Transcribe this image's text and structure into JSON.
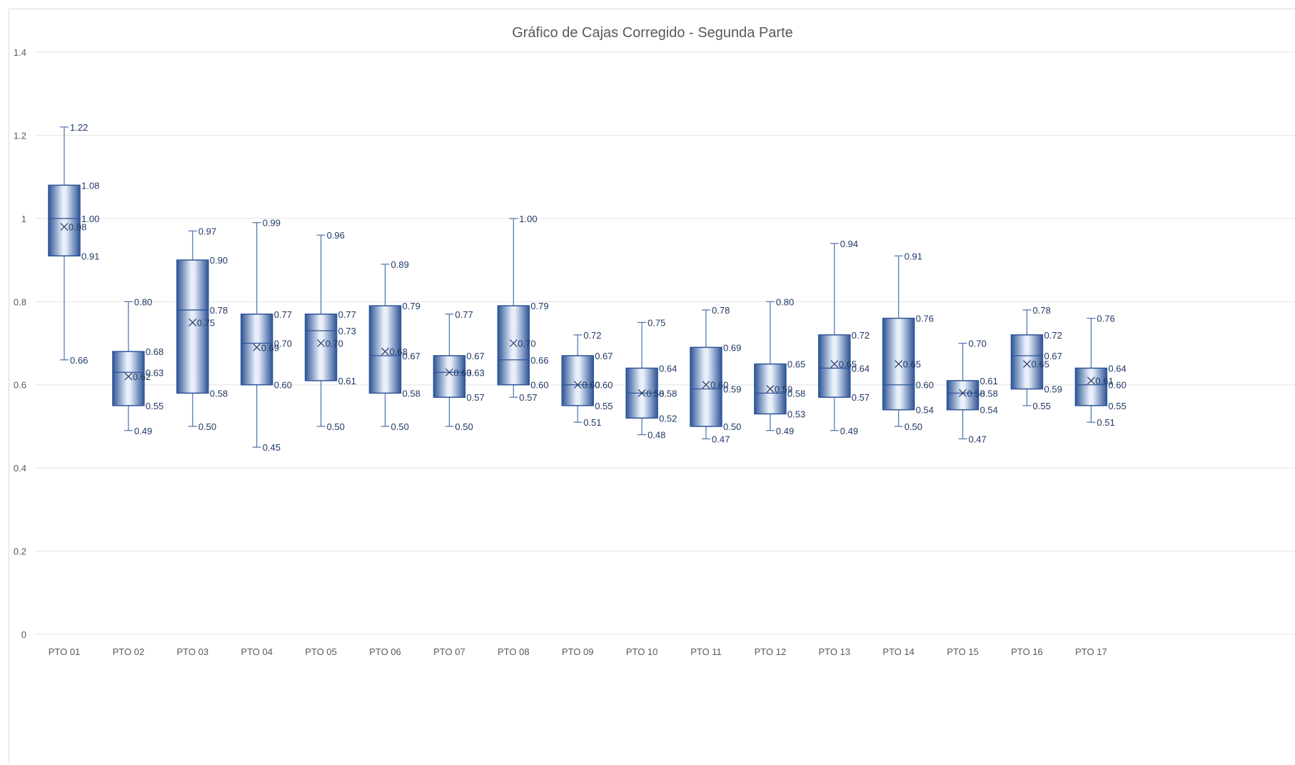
{
  "chart_data": {
    "type": "box",
    "title": "Gráfico de Cajas Corregido - Segunda Parte",
    "xlabel": "",
    "ylabel": "",
    "ylim": [
      0,
      1.4
    ],
    "y_ticks": [
      "0",
      "0.2",
      "0.4",
      "0.6",
      "0.8",
      "1",
      "1.2",
      "1.4"
    ],
    "grid": true,
    "legend": "none",
    "colors": {
      "box_dark": "#2e5597",
      "box_light": "#e8effa",
      "whisker": "#4a72b0",
      "label": "#1f3864",
      "grid": "#e4e4e4",
      "tick": "#595959"
    },
    "boxes": [
      {
        "category": "PTO 01",
        "min": 0.66,
        "q1": 0.91,
        "median": 1.0,
        "q3": 1.08,
        "max": 1.22,
        "mean": 0.98,
        "labels": {
          "max": "1.22",
          "q3": "1.08",
          "median": "1.00",
          "q1": "0.91",
          "min": "0.66",
          "mean": "0.98"
        }
      },
      {
        "category": "PTO 02",
        "min": 0.49,
        "q1": 0.55,
        "median": 0.63,
        "q3": 0.68,
        "max": 0.8,
        "mean": 0.62,
        "labels": {
          "max": "0.80",
          "q3": "0.68",
          "median": "0.63",
          "q1": "0.55",
          "min": "0.49",
          "mean": "0.62"
        }
      },
      {
        "category": "PTO 03",
        "min": 0.5,
        "q1": 0.58,
        "median": 0.78,
        "q3": 0.9,
        "max": 0.97,
        "mean": 0.75,
        "labels": {
          "max": "0.97",
          "q3": "0.90",
          "median": "0.78",
          "q1": "0.58",
          "min": "0.50",
          "mean": "0.75"
        }
      },
      {
        "category": "PTO 04",
        "min": 0.45,
        "q1": 0.6,
        "median": 0.7,
        "q3": 0.77,
        "max": 0.99,
        "mean": 0.69,
        "labels": {
          "max": "0.99",
          "q3": "0.77",
          "median": "0.70",
          "q1": "0.60",
          "min": "0.45",
          "mean": "0.69"
        }
      },
      {
        "category": "PTO 05",
        "min": 0.5,
        "q1": 0.61,
        "median": 0.73,
        "q3": 0.77,
        "max": 0.96,
        "mean": 0.7,
        "labels": {
          "max": "0.96",
          "q3": "0.77",
          "median": "0.73",
          "q1": "0.61",
          "min": "0.50",
          "mean": "0.70"
        }
      },
      {
        "category": "PTO 06",
        "min": 0.5,
        "q1": 0.58,
        "median": 0.67,
        "q3": 0.79,
        "max": 0.89,
        "mean": 0.68,
        "labels": {
          "max": "0.89",
          "q3": "0.79",
          "median": "0.67",
          "q1": "0.58",
          "min": "0.50",
          "mean": "0.68"
        }
      },
      {
        "category": "PTO 07",
        "min": 0.5,
        "q1": 0.57,
        "median": 0.63,
        "q3": 0.67,
        "max": 0.77,
        "mean": 0.63,
        "labels": {
          "max": "0.77",
          "q3": "0.67",
          "median": "0.63",
          "q1": "0.57",
          "min": "0.50",
          "mean": "0.63"
        }
      },
      {
        "category": "PTO 08",
        "min": 0.57,
        "q1": 0.6,
        "median": 0.66,
        "q3": 0.79,
        "max": 1.0,
        "mean": 0.7,
        "labels": {
          "max": "1.00",
          "q3": "0.79",
          "median": "0.66",
          "q1": "0.60",
          "min": "0.57",
          "mean": "0.70"
        }
      },
      {
        "category": "PTO 09",
        "min": 0.51,
        "q1": 0.55,
        "median": 0.6,
        "q3": 0.67,
        "max": 0.72,
        "mean": 0.6,
        "labels": {
          "max": "0.72",
          "q3": "0.67",
          "median": "0.60",
          "q1": "0.55",
          "min": "0.51",
          "mean": "0.60"
        }
      },
      {
        "category": "PTO 10",
        "min": 0.48,
        "q1": 0.52,
        "median": 0.58,
        "q3": 0.64,
        "max": 0.75,
        "mean": 0.58,
        "labels": {
          "max": "0.75",
          "q3": "0.64",
          "median": "0.58",
          "q1": "0.52",
          "min": "0.48",
          "mean": "0.58"
        }
      },
      {
        "category": "PTO 11",
        "min": 0.47,
        "q1": 0.5,
        "median": 0.59,
        "q3": 0.69,
        "max": 0.78,
        "mean": 0.6,
        "labels": {
          "max": "0.78",
          "q3": "0.69",
          "median": "0.59",
          "q1": "0.50",
          "min": "0.47",
          "mean": "0.60"
        }
      },
      {
        "category": "PTO 12",
        "min": 0.49,
        "q1": 0.53,
        "median": 0.58,
        "q3": 0.65,
        "max": 0.8,
        "mean": 0.59,
        "labels": {
          "max": "0.80",
          "q3": "0.65",
          "median": "0.58",
          "q1": "0.53",
          "min": "0.49",
          "mean": "0.59"
        }
      },
      {
        "category": "PTO 13",
        "min": 0.49,
        "q1": 0.57,
        "median": 0.64,
        "q3": 0.72,
        "max": 0.94,
        "mean": 0.65,
        "labels": {
          "max": "0.94",
          "q3": "0.72",
          "median": "0.64",
          "q1": "0.57",
          "min": "0.49",
          "mean": "0.65"
        }
      },
      {
        "category": "PTO 14",
        "min": 0.5,
        "q1": 0.54,
        "median": 0.6,
        "q3": 0.76,
        "max": 0.91,
        "mean": 0.65,
        "labels": {
          "max": "0.91",
          "q3": "0.76",
          "median": "0.60",
          "q1": "0.54",
          "min": "0.50",
          "mean": "0.65"
        }
      },
      {
        "category": "PTO 15",
        "min": 0.47,
        "q1": 0.54,
        "median": 0.58,
        "q3": 0.61,
        "max": 0.7,
        "mean": 0.58,
        "labels": {
          "max": "0.70",
          "q3": "0.61",
          "median": "0.58",
          "q1": "0.54",
          "min": "0.47",
          "mean": "0.58"
        }
      },
      {
        "category": "PTO 16",
        "min": 0.55,
        "q1": 0.59,
        "median": 0.67,
        "q3": 0.72,
        "max": 0.78,
        "mean": 0.65,
        "labels": {
          "max": "0.78",
          "q3": "0.72",
          "median": "0.67",
          "q1": "0.59",
          "min": "0.55",
          "mean": "0.65"
        }
      },
      {
        "category": "PTO 17",
        "min": 0.51,
        "q1": 0.55,
        "median": 0.6,
        "q3": 0.64,
        "max": 0.76,
        "mean": 0.61,
        "labels": {
          "max": "0.76",
          "q3": "0.64",
          "median": "0.60",
          "q1": "0.55",
          "min": "0.51",
          "mean": "0.61"
        }
      }
    ]
  }
}
